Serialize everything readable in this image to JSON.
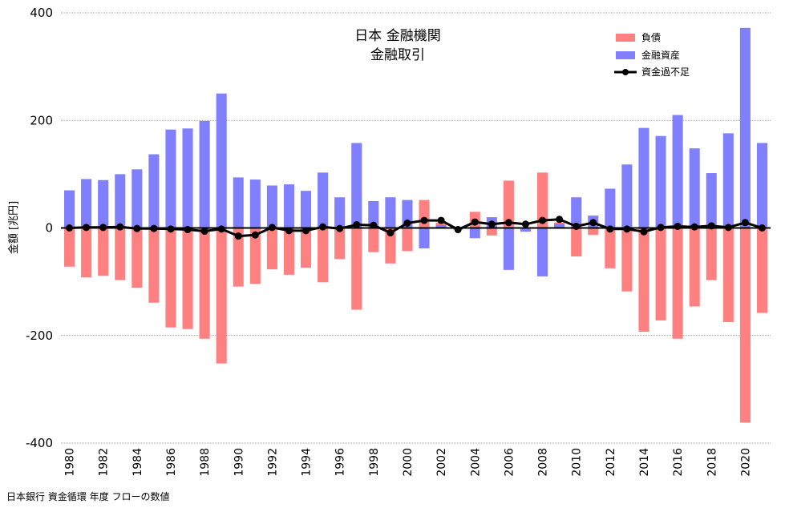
{
  "chart_data": {
    "type": "bar",
    "title_line1": "日本 金融機関",
    "title_line2": "金融取引",
    "ylabel": "金額 [兆円]",
    "ylim": [
      -400,
      400
    ],
    "yticks": [
      400,
      200,
      0,
      -200,
      -400
    ],
    "x_tick_labels": [
      "1980",
      "1982",
      "1984",
      "1986",
      "1988",
      "1990",
      "1992",
      "1994",
      "1996",
      "1998",
      "2000",
      "2002",
      "2004",
      "2006",
      "2008",
      "2010",
      "2012",
      "2014",
      "2016",
      "2018",
      "2020"
    ],
    "x": [
      1980,
      1981,
      1982,
      1983,
      1984,
      1985,
      1986,
      1987,
      1988,
      1989,
      1990,
      1991,
      1992,
      1993,
      1994,
      1995,
      1996,
      1997,
      1998,
      1999,
      2000,
      2001,
      2002,
      2003,
      2004,
      2005,
      2006,
      2007,
      2008,
      2009,
      2010,
      2011,
      2012,
      2013,
      2014,
      2015,
      2016,
      2017,
      2018,
      2019,
      2020,
      2021
    ],
    "grid": "horizontal",
    "legend_position": "top-right",
    "series": [
      {
        "name": "負債",
        "kind": "bar",
        "color": "#ff8080",
        "values": [
          -72,
          -92,
          -89,
          -97,
          -111,
          -139,
          -185,
          -188,
          -206,
          -252,
          -109,
          -104,
          -77,
          -87,
          -74,
          -101,
          -58,
          -152,
          -45,
          -66,
          -43,
          52,
          10,
          -3,
          30,
          -14,
          88,
          -2,
          103,
          10,
          -53,
          -13,
          -75,
          -118,
          -193,
          -172,
          -206,
          -146,
          -97,
          -175,
          -362,
          -158
        ]
      },
      {
        "name": "金融資産",
        "kind": "bar",
        "color": "#8080ff",
        "values": [
          70,
          91,
          89,
          100,
          109,
          137,
          183,
          185,
          199,
          250,
          94,
          90,
          79,
          81,
          69,
          103,
          57,
          158,
          50,
          57,
          52,
          -38,
          5,
          -3,
          -19,
          20,
          -78,
          -7,
          -90,
          8,
          57,
          23,
          73,
          118,
          186,
          171,
          210,
          148,
          102,
          176,
          372,
          158
        ]
      },
      {
        "name": "資金過不足",
        "kind": "line",
        "color": "#000000",
        "values": [
          0,
          1,
          1,
          2,
          -1,
          -1,
          -2,
          -3,
          -6,
          -2,
          -15,
          -13,
          1,
          -5,
          -5,
          2,
          -1,
          6,
          5,
          -9,
          9,
          14,
          14,
          -3,
          11,
          7,
          10,
          7,
          14,
          16,
          3,
          10,
          -2,
          -2,
          -7,
          1,
          3,
          2,
          4,
          1,
          10,
          0
        ]
      }
    ]
  },
  "footer": {
    "source": "日本銀行 資金循環 年度 フローの数値"
  }
}
